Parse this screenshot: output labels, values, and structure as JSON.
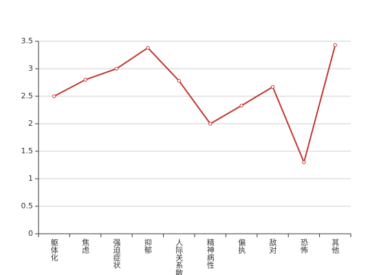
{
  "chart_data": {
    "type": "line",
    "categories": [
      "躯体化",
      "焦虑",
      "强迫症状",
      "抑郁",
      "人际关系敏感",
      "精神病性",
      "偏执",
      "敌对",
      "恐怖",
      "其他"
    ],
    "values": [
      2.5,
      2.8,
      3.0,
      3.38,
      2.78,
      2.0,
      2.33,
      2.67,
      1.3,
      3.43
    ],
    "color": "#c23531",
    "ylim": [
      0,
      3.5
    ],
    "yticks": [
      0,
      0.5,
      1,
      1.5,
      2,
      2.5,
      3,
      3.5
    ],
    "grid": true
  }
}
